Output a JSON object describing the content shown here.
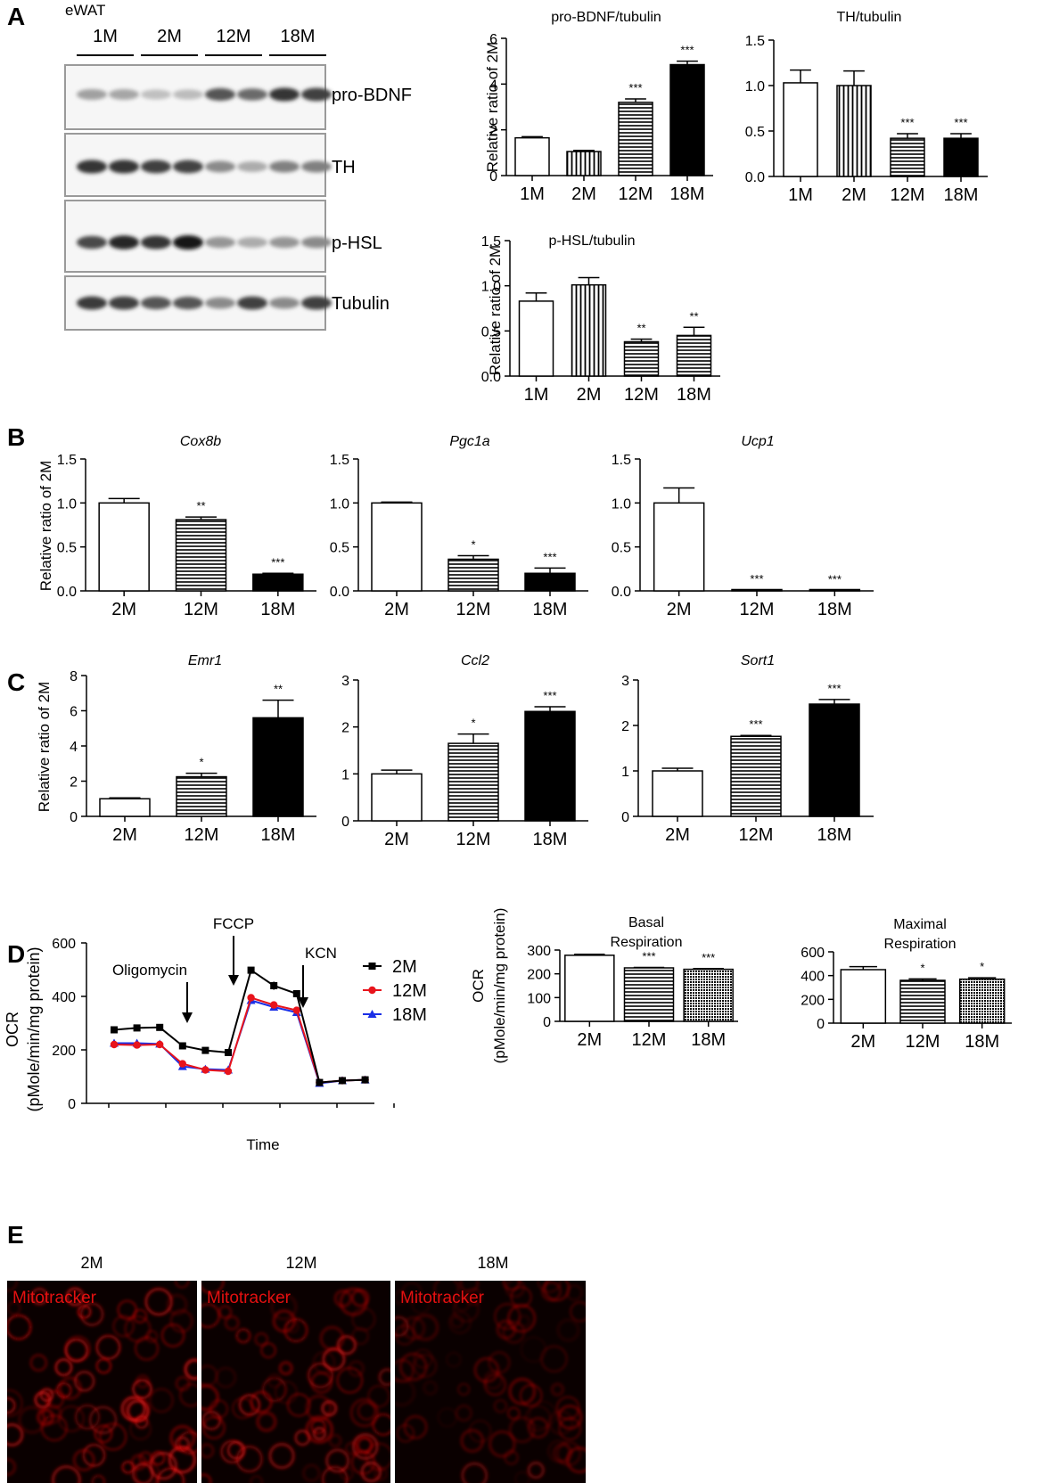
{
  "colors": {
    "open_bar": "#ffffff",
    "solid_bar": "#000000",
    "series_2M": "#000000",
    "series_12M": "#e8141c",
    "series_18M": "#1a2fe6",
    "micrograph_red": "#e31010"
  },
  "panel_letters": [
    "A",
    "B",
    "C",
    "D",
    "E"
  ],
  "western_blot": {
    "tissue": "eWAT",
    "lanes": [
      "1M",
      "2M",
      "12M",
      "18M"
    ],
    "bands": [
      "pro-BDNF",
      "TH",
      "p-HSL",
      "Tubulin"
    ]
  },
  "chart_data": [
    {
      "id": "probdnf",
      "type": "bar",
      "panel": "A",
      "title": "pro-BDNF/tubulin",
      "ylabel": "Relative ratio of 2M",
      "categories": [
        "1M",
        "2M",
        "12M",
        "18M"
      ],
      "values": [
        1.65,
        1.05,
        3.2,
        4.85
      ],
      "errors": [
        0.05,
        0.05,
        0.15,
        0.15
      ],
      "sig": [
        "",
        "",
        "***",
        "***"
      ],
      "patterns": [
        "white",
        "vertical",
        "horizontal",
        "black"
      ],
      "ylim": [
        0,
        6
      ],
      "yticks": [
        "0",
        "2",
        "4",
        "6"
      ]
    },
    {
      "id": "th",
      "type": "bar",
      "panel": "A",
      "title": "TH/tubulin",
      "ylabel": "",
      "categories": [
        "1M",
        "2M",
        "12M",
        "18M"
      ],
      "values": [
        1.03,
        1.0,
        0.42,
        0.42
      ],
      "errors": [
        0.14,
        0.16,
        0.05,
        0.05
      ],
      "sig": [
        "",
        "",
        "***",
        "***"
      ],
      "patterns": [
        "white",
        "vertical",
        "horizontal",
        "black"
      ],
      "ylim": [
        0,
        1.5
      ],
      "yticks": [
        "0.0",
        "0.5",
        "1.0",
        "1.5"
      ]
    },
    {
      "id": "phsl",
      "type": "bar",
      "panel": "A",
      "title": "p-HSL/tubulin",
      "ylabel": "Relative ratio of 2M",
      "categories": [
        "1M",
        "2M",
        "12M",
        "18M"
      ],
      "values": [
        0.83,
        1.01,
        0.38,
        0.45
      ],
      "errors": [
        0.09,
        0.08,
        0.03,
        0.09
      ],
      "sig": [
        "",
        "",
        "**",
        "**"
      ],
      "patterns": [
        "white",
        "vertical",
        "horizontal",
        "horizontal"
      ],
      "ylim": [
        0,
        1.5
      ],
      "yticks": [
        "0.0",
        "0.5",
        "1.0",
        "1.5"
      ]
    },
    {
      "id": "cox8b",
      "type": "bar",
      "panel": "B",
      "title": "Cox8b",
      "ylabel": "Relative ratio of 2M",
      "categories": [
        "2M",
        "12M",
        "18M"
      ],
      "values": [
        1.0,
        0.81,
        0.19
      ],
      "errors": [
        0.05,
        0.03,
        0.01
      ],
      "sig": [
        "",
        "**",
        "***"
      ],
      "patterns": [
        "white",
        "horizontal",
        "black"
      ],
      "ylim": [
        0,
        1.5
      ],
      "yticks": [
        "0.0",
        "0.5",
        "1.0",
        "1.5"
      ]
    },
    {
      "id": "pgc1a",
      "type": "bar",
      "panel": "B",
      "title": "Pgc1a",
      "ylabel": "",
      "categories": [
        "2M",
        "12M",
        "18M"
      ],
      "values": [
        1.0,
        0.36,
        0.2
      ],
      "errors": [
        0.01,
        0.04,
        0.06
      ],
      "sig": [
        "",
        "*",
        "***"
      ],
      "patterns": [
        "white",
        "horizontal",
        "black"
      ],
      "ylim": [
        0,
        1.5
      ],
      "yticks": [
        "0.0",
        "0.5",
        "1.0",
        "1.5"
      ]
    },
    {
      "id": "ucp1",
      "type": "bar",
      "panel": "B",
      "title": "Ucp1",
      "ylabel": "",
      "categories": [
        "2M",
        "12M",
        "18M"
      ],
      "values": [
        1.0,
        0.01,
        0.005
      ],
      "errors": [
        0.17,
        0.0,
        0.0
      ],
      "sig": [
        "",
        "***",
        "***"
      ],
      "patterns": [
        "white",
        "horizontal",
        "black"
      ],
      "ylim": [
        0,
        1.5
      ],
      "yticks": [
        "0.0",
        "0.5",
        "1.0",
        "1.5"
      ]
    },
    {
      "id": "emr1",
      "type": "bar",
      "panel": "C",
      "title": "Emr1",
      "ylabel": "Relative ratio of 2M",
      "categories": [
        "2M",
        "12M",
        "18M"
      ],
      "values": [
        1.0,
        2.25,
        5.6
      ],
      "errors": [
        0.05,
        0.2,
        1.0
      ],
      "sig": [
        "",
        "*",
        "**"
      ],
      "patterns": [
        "white",
        "horizontal",
        "black"
      ],
      "ylim": [
        0,
        8
      ],
      "yticks": [
        "0",
        "2",
        "4",
        "6",
        "8"
      ]
    },
    {
      "id": "ccl2",
      "type": "bar",
      "panel": "C",
      "title": "Ccl2",
      "ylabel": "",
      "categories": [
        "2M",
        "12M",
        "18M"
      ],
      "values": [
        1.0,
        1.65,
        2.33
      ],
      "errors": [
        0.08,
        0.2,
        0.1
      ],
      "sig": [
        "",
        "*",
        "***"
      ],
      "patterns": [
        "white",
        "horizontal",
        "black"
      ],
      "ylim": [
        0,
        3
      ],
      "yticks": [
        "0",
        "1",
        "2",
        "3"
      ]
    },
    {
      "id": "sort1",
      "type": "bar",
      "panel": "C",
      "title": "Sort1",
      "ylabel": "",
      "categories": [
        "2M",
        "12M",
        "18M"
      ],
      "values": [
        1.0,
        1.76,
        2.47
      ],
      "errors": [
        0.06,
        0.02,
        0.1
      ],
      "sig": [
        "",
        "***",
        "***"
      ],
      "patterns": [
        "white",
        "horizontal",
        "black"
      ],
      "ylim": [
        0,
        3
      ],
      "yticks": [
        "0",
        "1",
        "2",
        "3"
      ]
    },
    {
      "id": "ocr",
      "type": "line",
      "panel": "D",
      "title": "",
      "xlabel": "Time",
      "ylabel": "OCR",
      "ylabel2": "(pMole/min/mg protein)",
      "ylim": [
        0,
        600
      ],
      "yticks": [
        "0",
        "200",
        "400",
        "600"
      ],
      "x": [
        1,
        2,
        3,
        4,
        5,
        6,
        7,
        8,
        9,
        10,
        11,
        12
      ],
      "series": [
        {
          "name": "2M",
          "values": [
            275,
            282,
            284,
            215,
            198,
            190,
            498,
            440,
            410,
            78,
            85,
            88
          ],
          "errors": [
            0,
            0,
            0,
            0,
            0,
            0,
            0,
            15,
            12,
            5,
            0,
            0
          ]
        },
        {
          "name": "12M",
          "values": [
            220,
            218,
            220,
            148,
            125,
            120,
            395,
            368,
            348,
            78,
            85,
            88
          ],
          "errors": [
            0,
            0,
            0,
            0,
            0,
            0,
            0,
            0,
            0,
            0,
            0,
            0
          ]
        },
        {
          "name": "18M",
          "values": [
            225,
            225,
            222,
            138,
            128,
            125,
            385,
            360,
            340,
            75,
            85,
            88
          ],
          "errors": [
            0,
            0,
            0,
            0,
            0,
            0,
            0,
            0,
            0,
            0,
            0,
            0
          ]
        }
      ],
      "annotations": [
        "Oligomycin",
        "FCCP",
        "KCN"
      ]
    },
    {
      "id": "basal",
      "type": "bar",
      "panel": "D",
      "title": "Basal",
      "title2": "Respiration",
      "ylabel": "OCR",
      "ylabel2": "(pMole/min/mg protein)",
      "categories": [
        "2M",
        "12M",
        "18M"
      ],
      "values": [
        278,
        225,
        219
      ],
      "errors": [
        4,
        2,
        3
      ],
      "sig": [
        "",
        "***",
        "***"
      ],
      "patterns": [
        "white",
        "horizontal",
        "dotted"
      ],
      "ylim": [
        0,
        300
      ],
      "yticks": [
        "0",
        "100",
        "200",
        "300"
      ]
    },
    {
      "id": "maximal",
      "type": "bar",
      "panel": "D",
      "title": "Maximal",
      "title2": "Respiration",
      "ylabel": "",
      "categories": [
        "2M",
        "12M",
        "18M"
      ],
      "values": [
        450,
        360,
        370
      ],
      "errors": [
        25,
        12,
        12
      ],
      "sig": [
        "",
        "*",
        "*"
      ],
      "patterns": [
        "white",
        "horizontal",
        "dotted"
      ],
      "ylim": [
        0,
        600
      ],
      "yticks": [
        "0",
        "200",
        "400",
        "600"
      ]
    }
  ],
  "micrographs": {
    "ages": [
      "2M",
      "12M",
      "18M"
    ],
    "stain": "Mitotracker",
    "intensity": [
      1.0,
      0.85,
      0.55
    ]
  }
}
